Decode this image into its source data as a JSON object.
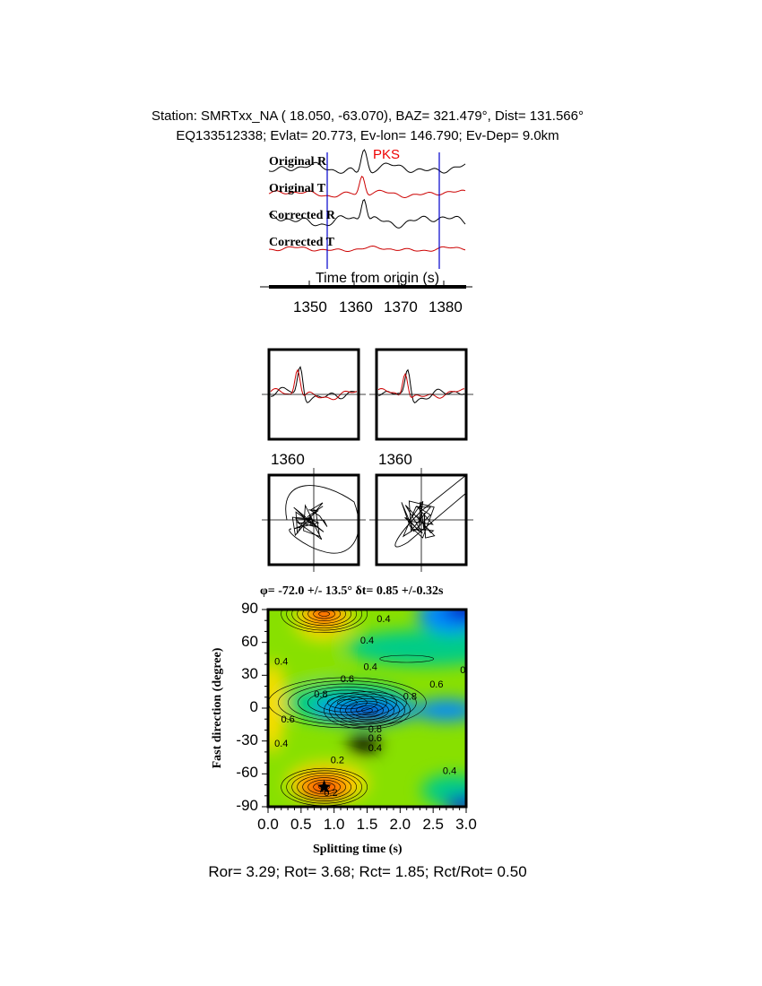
{
  "header": {
    "line1": "Station: SMRTxx_NA ( 18.050, -63.070), BAZ= 321.479°, Dist= 131.566°",
    "line2": "EQ133512338; Evlat= 20.773, Ev-lon= 146.790; Ev-Dep= 9.0km"
  },
  "traces": {
    "labels": [
      "Original R",
      "Original T",
      "Corrected R",
      "Corrected T"
    ],
    "phase": "PKS",
    "xlabel": "Time from origin (s)",
    "xticks": [
      "1350",
      "1360",
      "1370",
      "1380"
    ],
    "window_times": [
      1354,
      1379
    ],
    "colors": {
      "radial": "#000000",
      "transverse": "#cc0000",
      "window": "#0000cc"
    }
  },
  "waveform_panels": {
    "tick_label_left": "1360",
    "tick_label_right": "1360"
  },
  "chart_data": {
    "type": "heatmap",
    "title": "φ= -72.0 +/- 13.5° δt= 0.85 +/-0.32s",
    "xlabel": "Splitting time (s)",
    "ylabel": "Fast direction (degree)",
    "xlim": [
      0.0,
      3.0
    ],
    "ylim": [
      -90,
      90
    ],
    "xticks": [
      "0.0",
      "0.5",
      "1.0",
      "1.5",
      "2.0",
      "2.5",
      "3.0"
    ],
    "yticks": [
      "90",
      "60",
      "30",
      "0",
      "-30",
      "-60",
      "-90"
    ],
    "best_fit": {
      "dt": 0.85,
      "phi": -72.0
    },
    "contour_labels": [
      {
        "text": "0.4",
        "x": 0.2,
        "y": 43
      },
      {
        "text": "0.4",
        "x": 1.5,
        "y": 62
      },
      {
        "text": "0.4",
        "x": 1.55,
        "y": 38
      },
      {
        "text": "0.6",
        "x": 1.2,
        "y": 27
      },
      {
        "text": "0.6",
        "x": 2.55,
        "y": 22
      },
      {
        "text": "0.8",
        "x": 0.8,
        "y": 13
      },
      {
        "text": "0.8",
        "x": 2.15,
        "y": 11
      },
      {
        "text": "0.6",
        "x": 0.3,
        "y": -10
      },
      {
        "text": "0.4",
        "x": 0.2,
        "y": -32
      },
      {
        "text": "0.2",
        "x": 1.05,
        "y": -47
      },
      {
        "text": "0.2",
        "x": 0.95,
        "y": -77
      },
      {
        "text": "0.4",
        "x": 2.75,
        "y": -57
      },
      {
        "text": "0.8",
        "x": 1.62,
        "y": -19
      },
      {
        "text": "0.6",
        "x": 1.62,
        "y": -27
      },
      {
        "text": "0.4",
        "x": 1.62,
        "y": -36
      },
      {
        "text": "0.4",
        "x": 1.75,
        "y": 82
      },
      {
        "text": "0.",
        "x": 2.97,
        "y": 35
      }
    ],
    "colormap": [
      "#ff2200",
      "#ffdd00",
      "#88e000",
      "#00cc88",
      "#0088ff",
      "#0000cc"
    ],
    "grid": false
  },
  "footer": "Ror= 3.29; Rot= 3.68; Rct= 1.85; Rct/Rot= 0.50"
}
